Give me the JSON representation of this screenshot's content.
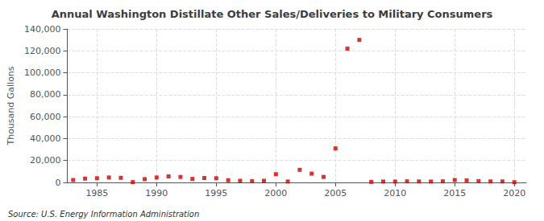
{
  "chart_data": {
    "type": "scatter",
    "title": "Annual Washington Distillate Other Sales/Deliveries to Military Consumers",
    "ylabel": "Thousand Gallons",
    "annotations": [
      "Source: U.S. Energy Information Administration"
    ],
    "x": [
      1983,
      1984,
      1985,
      1986,
      1987,
      1988,
      1989,
      1990,
      1991,
      1992,
      1993,
      1994,
      1995,
      1996,
      1997,
      1998,
      1999,
      2000,
      2001,
      2002,
      2003,
      2004,
      2005,
      2006,
      2007,
      2008,
      2009,
      2010,
      2011,
      2012,
      2013,
      2014,
      2015,
      2016,
      2017,
      2018,
      2019,
      2020
    ],
    "values": [
      2200,
      3500,
      3800,
      4500,
      4200,
      300,
      3000,
      4500,
      5500,
      5000,
      3200,
      4000,
      3800,
      2000,
      1500,
      1200,
      1500,
      7500,
      800,
      11500,
      8000,
      5000,
      31000,
      122000,
      130000,
      500,
      800,
      800,
      1000,
      900,
      800,
      1000,
      2200,
      1800,
      1200,
      900,
      900,
      200
    ],
    "color": "#cc0000",
    "marker": "square",
    "xlim": [
      1982.5,
      2021
    ],
    "ylim": [
      0,
      140000
    ],
    "xticks": [
      1985,
      1990,
      1995,
      2000,
      2005,
      2010,
      2015,
      2020
    ],
    "yticks": [
      0,
      {
        "value": 20000,
        "label": "20,000"
      },
      {
        "value": 40000,
        "label": "40,000"
      },
      {
        "value": 60000,
        "label": "60,000"
      },
      {
        "value": 80000,
        "label": "80,000"
      },
      {
        "value": 100000,
        "label": "100,000"
      },
      {
        "value": 120000,
        "label": "120,000"
      },
      {
        "value": 140000,
        "label": "140,000"
      }
    ],
    "grid": true
  }
}
